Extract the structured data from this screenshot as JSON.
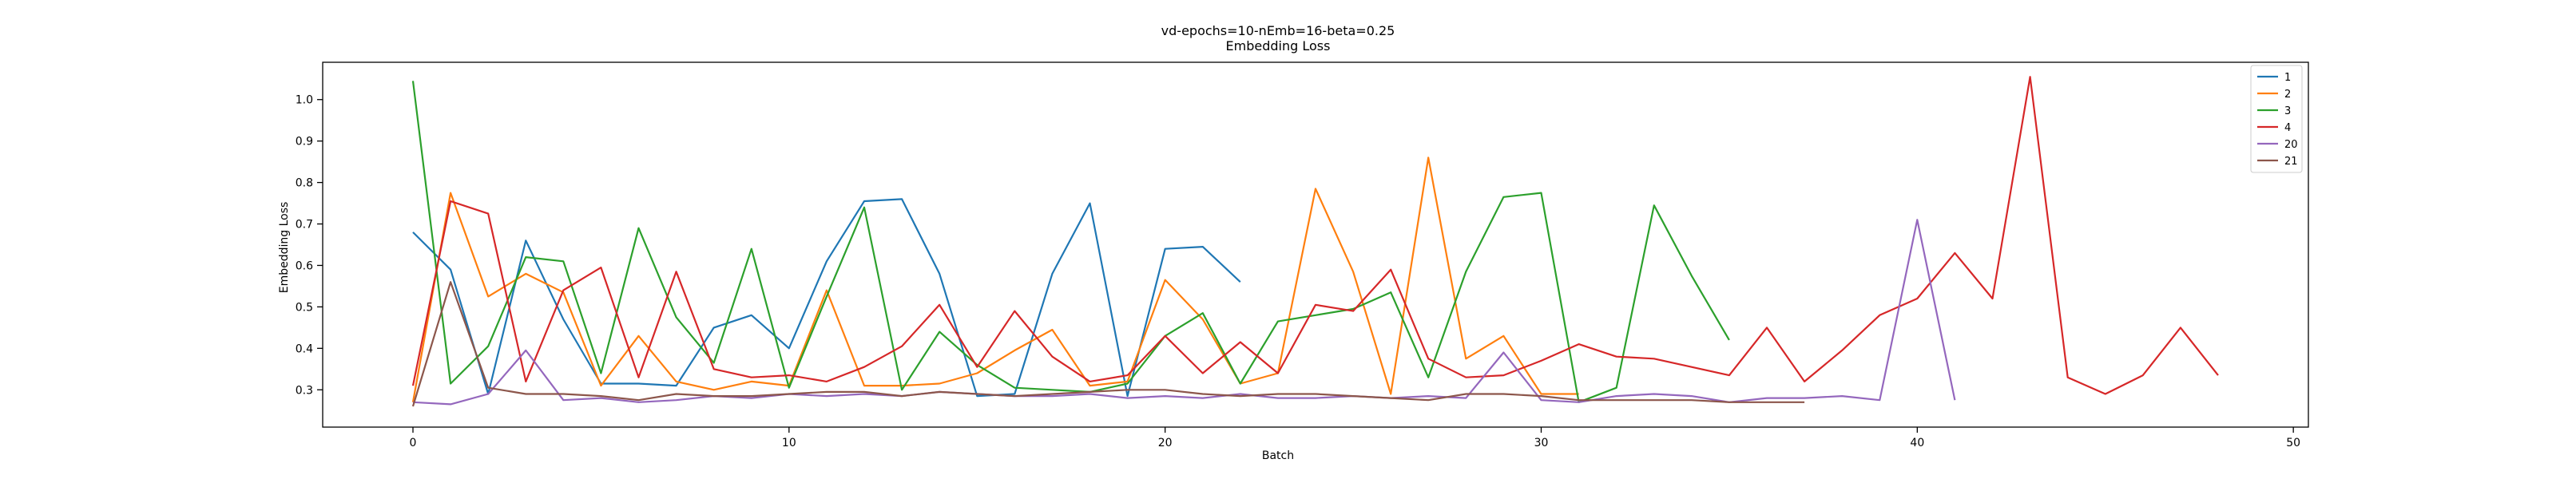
{
  "chart_data": {
    "type": "line",
    "title": "vd-epochs=10-nEmb=16-beta=0.25",
    "subtitle": "Embedding Loss",
    "xlabel": "Batch",
    "ylabel": "Embedding Loss",
    "xlim": [
      -2.4,
      50.4
    ],
    "ylim": [
      0.21,
      1.09
    ],
    "xticks": [
      0,
      10,
      20,
      30,
      40,
      50
    ],
    "yticks": [
      0.3,
      0.4,
      0.5,
      0.6,
      0.7,
      0.8,
      0.9,
      1.0
    ],
    "xtick_labels": [
      "0",
      "10",
      "20",
      "30",
      "40",
      "50"
    ],
    "ytick_labels": [
      "0.3",
      "0.4",
      "0.5",
      "0.6",
      "0.7",
      "0.8",
      "0.9",
      "1.0"
    ],
    "grid": false,
    "legend_position": "top-right",
    "series": [
      {
        "name": "1",
        "color": "#1f77b4",
        "x": [
          0,
          1,
          2,
          3,
          4,
          5,
          6,
          7,
          8,
          9,
          10,
          11,
          12,
          13,
          14,
          15,
          16,
          17,
          18,
          19,
          20,
          21,
          22
        ],
        "values": [
          0.68,
          0.59,
          0.29,
          0.66,
          0.47,
          0.315,
          0.315,
          0.31,
          0.45,
          0.48,
          0.4,
          0.61,
          0.755,
          0.76,
          0.58,
          0.285,
          0.29,
          0.58,
          0.75,
          0.285,
          0.64,
          0.645,
          0.56
        ]
      },
      {
        "name": "2",
        "color": "#ff7f0e",
        "x": [
          0,
          1,
          2,
          3,
          4,
          5,
          6,
          7,
          8,
          9,
          10,
          11,
          12,
          13,
          14,
          15,
          16,
          17,
          18,
          19,
          20,
          21,
          22,
          23,
          24,
          25,
          26,
          27,
          28,
          29,
          30,
          31
        ],
        "values": [
          0.27,
          0.775,
          0.525,
          0.58,
          0.535,
          0.31,
          0.43,
          0.32,
          0.3,
          0.32,
          0.31,
          0.54,
          0.31,
          0.31,
          0.315,
          0.34,
          0.395,
          0.445,
          0.31,
          0.32,
          0.565,
          0.47,
          0.315,
          0.34,
          0.785,
          0.585,
          0.29,
          0.86,
          0.375,
          0.43,
          0.29,
          0.29
        ]
      },
      {
        "name": "3",
        "color": "#2ca02c",
        "x": [
          0,
          1,
          2,
          3,
          4,
          5,
          6,
          7,
          8,
          9,
          10,
          11,
          12,
          13,
          14,
          15,
          16,
          17,
          18,
          19,
          20,
          21,
          22,
          23,
          24,
          25,
          26,
          27,
          28,
          29,
          30,
          31,
          32,
          33,
          34,
          35
        ],
        "values": [
          1.045,
          0.315,
          0.405,
          0.62,
          0.61,
          0.34,
          0.69,
          0.475,
          0.365,
          0.64,
          0.305,
          0.525,
          0.74,
          0.3,
          0.44,
          0.36,
          0.305,
          0.3,
          0.295,
          0.315,
          0.43,
          0.485,
          0.315,
          0.465,
          0.48,
          0.495,
          0.535,
          0.33,
          0.585,
          0.765,
          0.775,
          0.27,
          0.305,
          0.745,
          0.575,
          0.42
        ]
      },
      {
        "name": "4",
        "color": "#d62728",
        "x": [
          0,
          1,
          2,
          3,
          4,
          5,
          6,
          7,
          8,
          9,
          10,
          11,
          12,
          13,
          14,
          15,
          16,
          17,
          18,
          19,
          20,
          21,
          22,
          23,
          24,
          25,
          26,
          27,
          28,
          29,
          30,
          31,
          32,
          33,
          34,
          35,
          36,
          37,
          38,
          39,
          40,
          41,
          42,
          43,
          44,
          45,
          46,
          47,
          48
        ],
        "values": [
          0.31,
          0.755,
          0.725,
          0.32,
          0.54,
          0.595,
          0.33,
          0.585,
          0.35,
          0.33,
          0.335,
          0.32,
          0.355,
          0.405,
          0.505,
          0.355,
          0.49,
          0.38,
          0.32,
          0.335,
          0.43,
          0.34,
          0.415,
          0.34,
          0.505,
          0.49,
          0.59,
          0.375,
          0.33,
          0.335,
          0.37,
          0.41,
          0.38,
          0.375,
          0.355,
          0.335,
          0.45,
          0.32,
          0.395,
          0.48,
          0.52,
          0.63,
          0.52,
          1.055,
          0.33,
          0.29,
          0.335,
          0.45,
          0.335
        ]
      },
      {
        "name": "20",
        "color": "#9467bd",
        "x": [
          0,
          1,
          2,
          3,
          4,
          5,
          6,
          7,
          8,
          9,
          10,
          11,
          12,
          13,
          14,
          15,
          16,
          17,
          18,
          19,
          20,
          21,
          22,
          23,
          24,
          25,
          26,
          27,
          28,
          29,
          30,
          31,
          32,
          33,
          34,
          35,
          36,
          37,
          38,
          39,
          40,
          41
        ],
        "values": [
          0.27,
          0.265,
          0.29,
          0.395,
          0.275,
          0.28,
          0.27,
          0.275,
          0.285,
          0.28,
          0.29,
          0.285,
          0.29,
          0.285,
          0.295,
          0.29,
          0.285,
          0.285,
          0.29,
          0.28,
          0.285,
          0.28,
          0.29,
          0.28,
          0.28,
          0.285,
          0.28,
          0.285,
          0.28,
          0.39,
          0.275,
          0.27,
          0.285,
          0.29,
          0.285,
          0.27,
          0.28,
          0.28,
          0.285,
          0.275,
          0.71,
          0.275
        ]
      },
      {
        "name": "21",
        "color": "#8c564b",
        "x": [
          0,
          1,
          2,
          3,
          4,
          5,
          6,
          7,
          8,
          9,
          10,
          11,
          12,
          13,
          14,
          15,
          16,
          17,
          18,
          19,
          20,
          21,
          22,
          23,
          24,
          25,
          26,
          27,
          28,
          29,
          30,
          31,
          32,
          33,
          34,
          35,
          36,
          37
        ],
        "values": [
          0.26,
          0.56,
          0.305,
          0.29,
          0.29,
          0.285,
          0.275,
          0.29,
          0.285,
          0.285,
          0.29,
          0.295,
          0.295,
          0.285,
          0.295,
          0.29,
          0.285,
          0.29,
          0.295,
          0.3,
          0.3,
          0.29,
          0.285,
          0.29,
          0.29,
          0.285,
          0.28,
          0.275,
          0.29,
          0.29,
          0.285,
          0.275,
          0.275,
          0.275,
          0.275,
          0.27,
          0.27,
          0.27
        ]
      }
    ]
  }
}
